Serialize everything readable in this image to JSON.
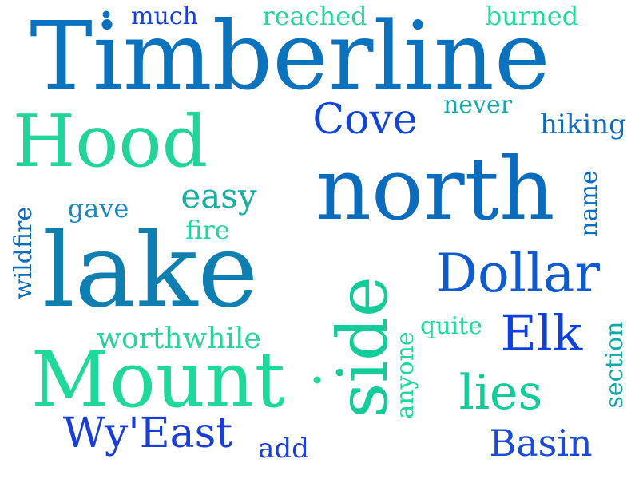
{
  "words": [
    {
      "text": "Timberline",
      "color": "#0B72BE"
    },
    {
      "text": "north",
      "color": "#0B6CBE"
    },
    {
      "text": "lake",
      "color": "#0E7FB0"
    },
    {
      "text": "Mount",
      "color": "#1FD99A"
    },
    {
      "text": "side",
      "color": "#14CC9A"
    },
    {
      "text": "Hood",
      "color": "#22D39A"
    },
    {
      "text": "Dollar",
      "color": "#0E5BD0"
    },
    {
      "text": "Elk",
      "color": "#0E3FE0"
    },
    {
      "text": "Cove",
      "color": "#1145D6"
    },
    {
      "text": "lies",
      "color": "#14CC9A"
    },
    {
      "text": "Wy'East",
      "color": "#1A3FD8"
    },
    {
      "text": "Basin",
      "color": "#1A4AD6"
    },
    {
      "text": "easy",
      "color": "#1AAE9F"
    },
    {
      "text": "worthwhile",
      "color": "#2AD39A"
    },
    {
      "text": "hiking",
      "color": "#0E6CBE"
    },
    {
      "text": "much",
      "color": "#1A3FD8"
    },
    {
      "text": "reached",
      "color": "#2AD39A"
    },
    {
      "text": "burned",
      "color": "#1FD99A"
    },
    {
      "text": "never",
      "color": "#14A8A8"
    },
    {
      "text": "gave",
      "color": "#1A8ABE"
    },
    {
      "text": "fire",
      "color": "#1FD99A"
    },
    {
      "text": "quite",
      "color": "#1FD99A"
    },
    {
      "text": "add",
      "color": "#1A3FD8"
    },
    {
      "text": "name",
      "color": "#0E6CBE"
    },
    {
      "text": "wildfire",
      "color": "#0E6CBE"
    },
    {
      "text": "anyone",
      "color": "#1FD99A"
    },
    {
      "text": "section",
      "color": "#14A8A8"
    }
  ],
  "dots": [
    {
      "color": "#0B72BE"
    },
    {
      "color": "#1FD99A"
    }
  ]
}
